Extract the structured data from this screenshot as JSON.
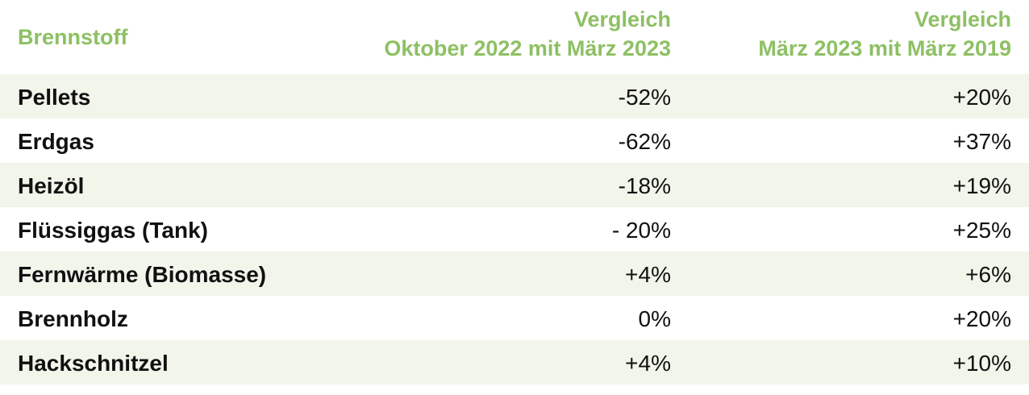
{
  "colors": {
    "header_text": "#8dc063",
    "row_shade": "#f1f5ea",
    "body_text": "#111111"
  },
  "header": {
    "col0": "Brennstoff",
    "col1_line1": "Vergleich",
    "col1_line2": "Oktober 2022 mit März 2023",
    "col2_line1": "Vergleich",
    "col2_line2": "März 2023 mit März 2019"
  },
  "rows": [
    {
      "fuel": "Pellets",
      "oct22_mar23": "-52%",
      "mar23_mar19": "+20%"
    },
    {
      "fuel": "Erdgas",
      "oct22_mar23": "-62%",
      "mar23_mar19": "+37%"
    },
    {
      "fuel": "Heizöl",
      "oct22_mar23": "-18%",
      "mar23_mar19": "+19%"
    },
    {
      "fuel": "Flüssiggas (Tank)",
      "oct22_mar23": "- 20%",
      "mar23_mar19": "+25%"
    },
    {
      "fuel": "Fernwärme (Biomasse)",
      "oct22_mar23": "+4%",
      "mar23_mar19": "+6%"
    },
    {
      "fuel": "Brennholz",
      "oct22_mar23": "0%",
      "mar23_mar19": "+20%"
    },
    {
      "fuel": "Hackschnitzel",
      "oct22_mar23": "+4%",
      "mar23_mar19": "+10%"
    }
  ]
}
